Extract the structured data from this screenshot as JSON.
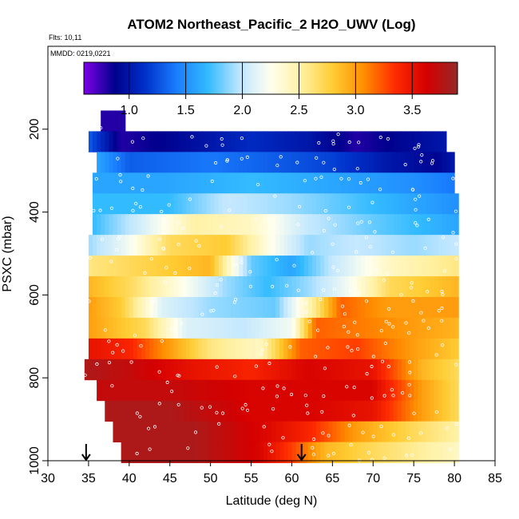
{
  "chart_data": {
    "type": "heatmap",
    "title": "ATOM2 Northeast_Pacific_2 H2O_UWV (Log)",
    "flights_note": "Flts: 10,11",
    "date_note": "MMDD: 0219,0221",
    "xlabel": "Latitude (deg N)",
    "ylabel": "PSXC (mbar)",
    "xlim": [
      30,
      85
    ],
    "ylim": [
      1000,
      0
    ],
    "x_ticks": [
      30,
      35,
      40,
      45,
      50,
      55,
      60,
      65,
      70,
      75,
      80,
      85
    ],
    "y_ticks": [
      200,
      400,
      600,
      800,
      1000
    ],
    "colorbar": {
      "range": [
        0.6,
        3.9
      ],
      "ticks": [
        1.0,
        1.5,
        2.0,
        2.5,
        3.0,
        3.5
      ],
      "tick_labels": [
        "1.0",
        "1.5",
        "2.0",
        "2.5",
        "3.0",
        "3.5"
      ],
      "stops": [
        "#7e00e8",
        "#00008c",
        "#0033cc",
        "#1a7fff",
        "#33bbff",
        "#bfe6ff",
        "#ffffee",
        "#fff0a0",
        "#ffcc33",
        "#ff8c00",
        "#ff2b00",
        "#d40000",
        "#962828"
      ]
    },
    "layer_pressures": [
      180,
      230,
      280,
      330,
      380,
      430,
      480,
      530,
      580,
      630,
      680,
      730,
      780,
      830,
      880,
      930,
      980
    ],
    "layers": [
      {
        "p": 180,
        "lat": [
          36.5,
          39.5
        ],
        "values": [
          [
            36.5,
            0.8
          ],
          [
            39.5,
            0.8
          ]
        ]
      },
      {
        "p": 230,
        "lat": [
          35.0,
          79.0
        ],
        "values": [
          [
            35,
            1.3
          ],
          [
            39,
            0.8
          ],
          [
            45,
            0.9
          ],
          [
            55,
            1.1
          ],
          [
            62,
            1.0
          ],
          [
            68,
            0.8
          ],
          [
            73,
            0.9
          ],
          [
            79,
            1.0
          ]
        ]
      },
      {
        "p": 280,
        "lat": [
          36.0,
          80.0
        ],
        "values": [
          [
            36,
            1.6
          ],
          [
            40,
            1.3
          ],
          [
            50,
            1.4
          ],
          [
            58,
            1.3
          ],
          [
            65,
            1.2
          ],
          [
            72,
            1.0
          ],
          [
            78,
            0.9
          ],
          [
            80,
            1.0
          ]
        ]
      },
      {
        "p": 330,
        "lat": [
          35.5,
          80.0
        ],
        "values": [
          [
            35.5,
            1.6
          ],
          [
            45,
            1.6
          ],
          [
            55,
            1.7
          ],
          [
            65,
            1.6
          ],
          [
            75,
            1.5
          ],
          [
            80,
            1.4
          ]
        ]
      },
      {
        "p": 380,
        "lat": [
          35.5,
          80.5
        ],
        "values": [
          [
            35.5,
            1.7
          ],
          [
            45,
            1.7
          ],
          [
            52,
            2.0
          ],
          [
            60,
            1.9
          ],
          [
            70,
            1.7
          ],
          [
            80.5,
            1.5
          ]
        ]
      },
      {
        "p": 430,
        "lat": [
          35.5,
          80.5
        ],
        "values": [
          [
            35.5,
            1.7
          ],
          [
            42,
            2.1
          ],
          [
            48,
            2.5
          ],
          [
            55,
            2.4
          ],
          [
            62,
            2.0
          ],
          [
            70,
            1.8
          ],
          [
            80.5,
            1.6
          ]
        ]
      },
      {
        "p": 480,
        "lat": [
          35.0,
          80.5
        ],
        "values": [
          [
            35,
            1.9
          ],
          [
            40,
            2.2
          ],
          [
            45,
            2.7
          ],
          [
            52,
            2.8
          ],
          [
            57,
            2.3
          ],
          [
            62,
            1.9
          ],
          [
            68,
            2.0
          ],
          [
            75,
            1.9
          ],
          [
            80.5,
            2.0
          ]
        ]
      },
      {
        "p": 530,
        "lat": [
          35.0,
          80.5
        ],
        "values": [
          [
            35,
            2.6
          ],
          [
            45,
            2.8
          ],
          [
            50,
            2.9
          ],
          [
            55,
            1.8
          ],
          [
            60,
            1.6
          ],
          [
            65,
            2.0
          ],
          [
            72,
            2.4
          ],
          [
            80.5,
            2.6
          ]
        ]
      },
      {
        "p": 580,
        "lat": [
          35.0,
          80.5
        ],
        "values": [
          [
            35,
            2.9
          ],
          [
            40,
            2.7
          ],
          [
            46,
            2.3
          ],
          [
            52,
            1.9
          ],
          [
            57,
            1.7
          ],
          [
            62,
            1.9
          ],
          [
            67,
            2.2
          ],
          [
            72,
            2.7
          ],
          [
            80.5,
            2.9
          ]
        ]
      },
      {
        "p": 630,
        "lat": [
          35.0,
          80.5
        ],
        "values": [
          [
            35,
            3.0
          ],
          [
            39,
            2.8
          ],
          [
            44,
            2.1
          ],
          [
            50,
            1.9
          ],
          [
            58,
            1.8
          ],
          [
            63,
            2.6
          ],
          [
            66,
            3.2
          ],
          [
            72,
            3.0
          ],
          [
            80.5,
            3.0
          ]
        ]
      },
      {
        "p": 680,
        "lat": [
          35.0,
          80.5
        ],
        "values": [
          [
            35,
            3.0
          ],
          [
            42,
            2.7
          ],
          [
            47,
            2.1
          ],
          [
            54,
            2.0
          ],
          [
            60,
            2.2
          ],
          [
            63,
            3.2
          ],
          [
            70,
            3.1
          ],
          [
            80.5,
            2.9
          ]
        ]
      },
      {
        "p": 730,
        "lat": [
          35.0,
          80.5
        ],
        "values": [
          [
            35,
            3.5
          ],
          [
            40,
            3.4
          ],
          [
            45,
            3.0
          ],
          [
            50,
            2.6
          ],
          [
            56,
            2.4
          ],
          [
            61,
            3.2
          ],
          [
            68,
            3.3
          ],
          [
            75,
            3.0
          ],
          [
            80.5,
            2.8
          ]
        ]
      },
      {
        "p": 780,
        "lat": [
          34.5,
          80.5
        ],
        "values": [
          [
            34.5,
            3.8
          ],
          [
            40,
            3.7
          ],
          [
            48,
            3.5
          ],
          [
            55,
            3.4
          ],
          [
            62,
            3.6
          ],
          [
            70,
            3.5
          ],
          [
            76,
            2.9
          ],
          [
            80.5,
            2.7
          ]
        ]
      },
      {
        "p": 830,
        "lat": [
          36.0,
          80.5
        ],
        "values": [
          [
            36,
            3.7
          ],
          [
            45,
            3.7
          ],
          [
            55,
            3.6
          ],
          [
            62,
            3.6
          ],
          [
            70,
            3.6
          ],
          [
            76,
            3.0
          ],
          [
            80.5,
            2.7
          ]
        ]
      },
      {
        "p": 880,
        "lat": [
          37.0,
          80.5
        ],
        "values": [
          [
            37,
            3.8
          ],
          [
            45,
            3.8
          ],
          [
            55,
            3.6
          ],
          [
            62,
            3.6
          ],
          [
            70,
            3.5
          ],
          [
            76,
            3.0
          ],
          [
            80.5,
            2.7
          ]
        ]
      },
      {
        "p": 930,
        "lat": [
          38.0,
          80.5
        ],
        "values": [
          [
            38,
            3.8
          ],
          [
            48,
            3.8
          ],
          [
            56,
            3.6
          ],
          [
            62,
            3.4
          ],
          [
            68,
            3.0
          ],
          [
            75,
            2.7
          ],
          [
            80.5,
            2.5
          ]
        ]
      },
      {
        "p": 980,
        "lat": [
          39.0,
          80.5
        ],
        "values": [
          [
            39,
            3.8
          ],
          [
            48,
            3.8
          ],
          [
            56,
            3.6
          ],
          [
            60,
            3.3
          ],
          [
            64,
            2.9
          ],
          [
            70,
            2.7
          ],
          [
            80.5,
            2.4
          ]
        ]
      }
    ],
    "arrows_lat": [
      34.7,
      61.2
    ],
    "arrows_label": "flight start/end markers"
  }
}
